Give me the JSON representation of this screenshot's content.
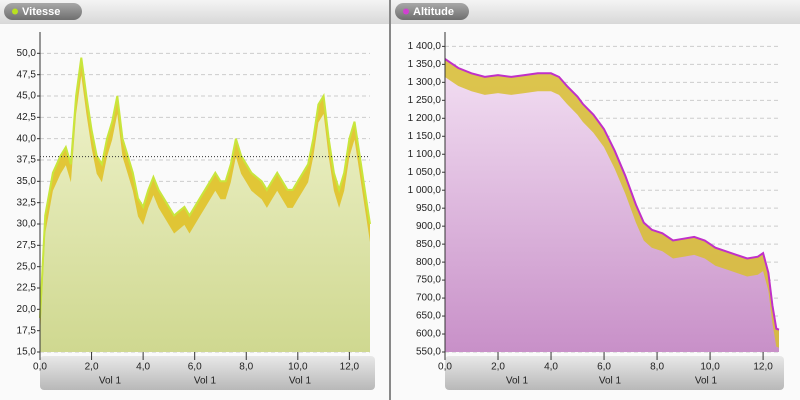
{
  "chart_data": [
    {
      "type": "area",
      "title": "Vitesse",
      "color": "#c8e63c",
      "band_color": "#e0c020",
      "fill_top": "#f2f5d0",
      "fill_bottom": "#cfd890",
      "dot_color": "#b8e020",
      "x": [
        0,
        0.2,
        0.5,
        0.8,
        1.0,
        1.2,
        1.4,
        1.6,
        1.8,
        2.0,
        2.2,
        2.4,
        2.6,
        2.8,
        3.0,
        3.2,
        3.4,
        3.6,
        3.8,
        4.0,
        4.2,
        4.4,
        4.6,
        4.8,
        5.0,
        5.2,
        5.4,
        5.6,
        5.8,
        6.0,
        6.2,
        6.4,
        6.6,
        6.8,
        7.0,
        7.2,
        7.4,
        7.6,
        7.8,
        8.0,
        8.2,
        8.4,
        8.6,
        8.8,
        9.0,
        9.2,
        9.4,
        9.6,
        9.8,
        10.0,
        10.2,
        10.4,
        10.6,
        10.8,
        11.0,
        11.2,
        11.4,
        11.6,
        11.8,
        12.0,
        12.2,
        12.4,
        12.6,
        12.8
      ],
      "values": [
        19,
        31,
        36,
        38,
        39,
        37,
        45,
        49.5,
        45,
        41,
        38,
        37,
        40,
        42,
        45,
        40,
        38,
        36,
        33,
        32,
        34,
        35.5,
        34,
        33,
        32,
        31,
        31.5,
        32,
        31,
        32,
        33,
        34,
        35,
        36,
        35,
        35,
        37,
        40,
        38,
        37,
        36,
        35.5,
        35,
        34,
        35,
        36,
        35,
        34,
        34,
        35,
        36,
        37,
        40,
        44,
        45,
        40,
        36,
        34,
        36,
        40,
        42,
        38,
        34,
        30
      ],
      "reference_line": 37.9,
      "xlim": [
        0,
        12.8
      ],
      "ylim": [
        15,
        52.5
      ],
      "xticks": [
        {
          "value": 0,
          "label": "0,0"
        },
        {
          "value": 2,
          "label": "2,0"
        },
        {
          "value": 4,
          "label": "4,0"
        },
        {
          "value": 6,
          "label": "6,0"
        },
        {
          "value": 8,
          "label": "8,0"
        },
        {
          "value": 10,
          "label": "10,0"
        },
        {
          "value": 12,
          "label": "12,0"
        }
      ],
      "yticks": [
        {
          "value": 15,
          "label": "15,0"
        },
        {
          "value": 17.5,
          "label": "17,5"
        },
        {
          "value": 20,
          "label": "20,0"
        },
        {
          "value": 22.5,
          "label": "22,5"
        },
        {
          "value": 25,
          "label": "25,0"
        },
        {
          "value": 27.5,
          "label": "27,5"
        },
        {
          "value": 30,
          "label": "30,0"
        },
        {
          "value": 32.5,
          "label": "32,5"
        },
        {
          "value": 35,
          "label": "35,0"
        },
        {
          "value": 37.5,
          "label": "37,5"
        },
        {
          "value": 40,
          "label": "40,0"
        },
        {
          "value": 42.5,
          "label": "42,5"
        },
        {
          "value": 45,
          "label": "45,0"
        },
        {
          "value": 47.5,
          "label": "47,5"
        },
        {
          "value": 50,
          "label": "50,0"
        }
      ],
      "band_labels": [
        "Vol 1",
        "Vol 1",
        "Vol 1"
      ],
      "grid": true
    },
    {
      "type": "area",
      "title": "Altitude",
      "color": "#c030c8",
      "band_color": "#d8c030",
      "fill_top": "#f3e0f3",
      "fill_bottom": "#c890c8",
      "dot_color": "#d040d0",
      "x": [
        0,
        0.2,
        0.5,
        1.0,
        1.5,
        2.0,
        2.5,
        3.0,
        3.5,
        4.0,
        4.3,
        4.6,
        5.0,
        5.2,
        5.6,
        6.0,
        6.4,
        6.8,
        7.2,
        7.5,
        7.8,
        8.2,
        8.6,
        9.0,
        9.4,
        9.8,
        10.2,
        10.6,
        11.0,
        11.4,
        11.8,
        12.0,
        12.2,
        12.35,
        12.5,
        12.6
      ],
      "values": [
        1365,
        1355,
        1340,
        1325,
        1315,
        1320,
        1315,
        1320,
        1325,
        1325,
        1315,
        1290,
        1260,
        1240,
        1210,
        1170,
        1110,
        1040,
        960,
        910,
        890,
        880,
        860,
        865,
        870,
        860,
        840,
        830,
        820,
        810,
        815,
        825,
        770,
        680,
        615,
        612
      ],
      "xlim": [
        0,
        12.6
      ],
      "ylim": [
        550,
        1440
      ],
      "xticks": [
        {
          "value": 0,
          "label": "0,0"
        },
        {
          "value": 2,
          "label": "2,0"
        },
        {
          "value": 4,
          "label": "4,0"
        },
        {
          "value": 6,
          "label": "6,0"
        },
        {
          "value": 8,
          "label": "8,0"
        },
        {
          "value": 10,
          "label": "10,0"
        },
        {
          "value": 12,
          "label": "12,0"
        }
      ],
      "yticks": [
        {
          "value": 550,
          "label": "550,0"
        },
        {
          "value": 600,
          "label": "600,0"
        },
        {
          "value": 650,
          "label": "650,0"
        },
        {
          "value": 700,
          "label": "700,0"
        },
        {
          "value": 750,
          "label": "750,0"
        },
        {
          "value": 800,
          "label": "800,0"
        },
        {
          "value": 850,
          "label": "850,0"
        },
        {
          "value": 900,
          "label": "900,0"
        },
        {
          "value": 950,
          "label": "950,0"
        },
        {
          "value": 1000,
          "label": "1 000,0"
        },
        {
          "value": 1050,
          "label": "1 050,0"
        },
        {
          "value": 1100,
          "label": "1 100,0"
        },
        {
          "value": 1150,
          "label": "1 150,0"
        },
        {
          "value": 1200,
          "label": "1 200,0"
        },
        {
          "value": 1250,
          "label": "1 250,0"
        },
        {
          "value": 1300,
          "label": "1 300,0"
        },
        {
          "value": 1350,
          "label": "1 350,0"
        },
        {
          "value": 1400,
          "label": "1 400,0"
        }
      ],
      "band_labels": [
        "Vol 1",
        "Vol 1",
        "Vol 1"
      ],
      "grid": true
    }
  ]
}
